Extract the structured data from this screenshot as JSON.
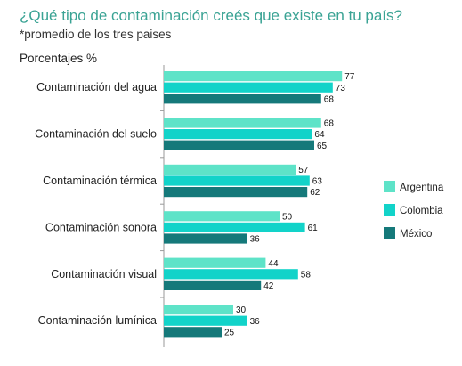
{
  "title": "¿Qué tipo de contaminación creés que existe en tu país?",
  "subtitle": "*promedio de los tres paises",
  "ylabel": "Porcentajes %",
  "chart_data": {
    "type": "bar",
    "orientation": "horizontal",
    "title": "¿Qué tipo de contaminación creés que existe en tu país?",
    "subtitle": "*promedio de los tres paises",
    "ylabel": "Porcentajes %",
    "categories": [
      "Contaminación del agua",
      "Contaminación del suelo",
      "Contaminación térmica",
      "Contaminación sonora",
      "Contaminación visual",
      "Contaminación lumínica"
    ],
    "series": [
      {
        "name": "Argentina",
        "color": "#5ee3c8",
        "values": [
          77,
          68,
          57,
          50,
          44,
          30
        ]
      },
      {
        "name": "Colombia",
        "color": "#12d3c9",
        "values": [
          73,
          64,
          63,
          61,
          58,
          36
        ]
      },
      {
        "name": "México",
        "color": "#15797a",
        "values": [
          68,
          65,
          62,
          36,
          42,
          25
        ]
      }
    ],
    "xlim": [
      0,
      100
    ],
    "grid": false,
    "legend_position": "right"
  }
}
